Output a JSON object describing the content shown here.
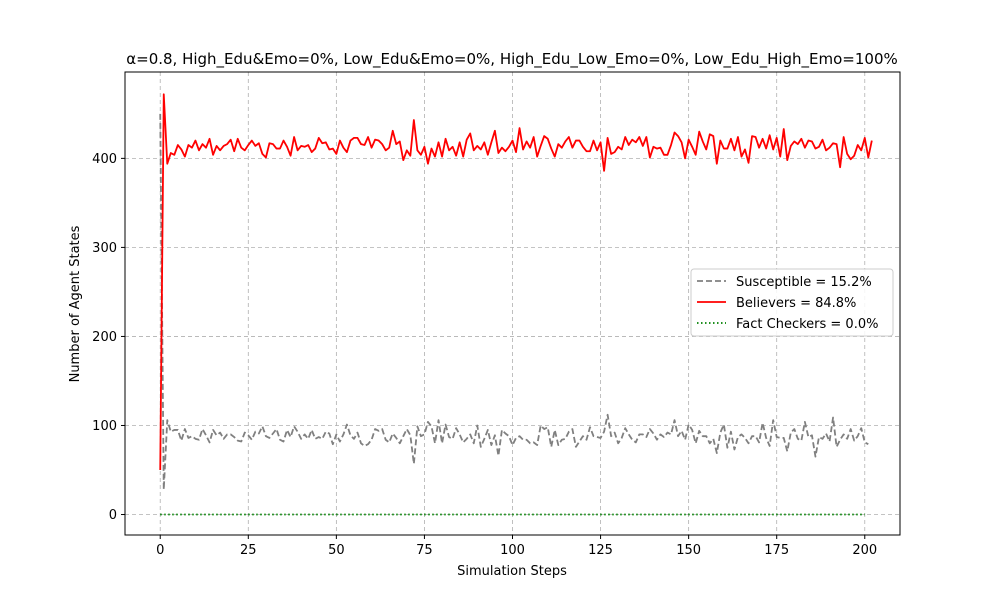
{
  "chart_data": {
    "type": "line",
    "title": "α=0.8, High_Edu&Emo=0%, Low_Edu&Emo=0%, High_Edu_Low_Emo=0%, Low_Edu_High_Emo=100%",
    "xlabel": "Simulation Steps",
    "ylabel": "Number of Agent States",
    "xlim": [
      -10,
      210
    ],
    "ylim": [
      -23,
      497
    ],
    "xticks": [
      0,
      25,
      50,
      75,
      100,
      125,
      150,
      175,
      200
    ],
    "yticks": [
      0,
      100,
      200,
      300,
      400
    ],
    "grid": true,
    "legend_position": "center-right",
    "series": [
      {
        "name": "Susceptible = 15.2%",
        "color": "#808080",
        "style": "dashed",
        "values": [
          450,
          28,
          106,
          93,
          95,
          95,
          83,
          96,
          86,
          88,
          85,
          84,
          96,
          89,
          81,
          95,
          89,
          92,
          85,
          90,
          90,
          87,
          83,
          82,
          92,
          89,
          84,
          93,
          91,
          99,
          88,
          86,
          91,
          96,
          84,
          82,
          95,
          87,
          99,
          93,
          85,
          90,
          85,
          95,
          85,
          87,
          85,
          93,
          91,
          79,
          90,
          82,
          90,
          101,
          89,
          85,
          92,
          80,
          77,
          79,
          84,
          96,
          94,
          96,
          84,
          81,
          91,
          86,
          80,
          88,
          96,
          89,
          57,
          99,
          88,
          90,
          104,
          99,
          80,
          106,
          80,
          101,
          87,
          85,
          97,
          90,
          81,
          85,
          90,
          80,
          100,
          76,
          85,
          95,
          78,
          89,
          66,
          95,
          91,
          88,
          78,
          86,
          88,
          84,
          84,
          80,
          81,
          78,
          100,
          96,
          98,
          76,
          95,
          78,
          84,
          85,
          93,
          96,
          76,
          82,
          88,
          84,
          98,
          88,
          87,
          86,
          93,
          112,
          88,
          92,
          80,
          86,
          97,
          90,
          84,
          81,
          90,
          90,
          87,
          96,
          91,
          84,
          90,
          87,
          92,
          90,
          106,
          88,
          94,
          84,
          101,
          95,
          80,
          94,
          88,
          88,
          80,
          85,
          69,
          92,
          101,
          75,
          93,
          73,
          87,
          90,
          86,
          80,
          88,
          88,
          81,
          103,
          86,
          77,
          106,
          87,
          86,
          86,
          71,
          92,
          96,
          85,
          83,
          104,
          87,
          89,
          65,
          87,
          85,
          91,
          82,
          109,
          76,
          84,
          90,
          85,
          96,
          83,
          88,
          97,
          81,
          79
        ],
        "x_start": 0
      },
      {
        "name": "Believers = 84.8%",
        "color": "#ff0000",
        "style": "solid",
        "values": [
          50,
          472,
          394,
          406,
          404,
          415,
          410,
          402,
          415,
          412,
          420,
          409,
          416,
          412,
          422,
          404,
          414,
          409,
          414,
          416,
          421,
          408,
          422,
          412,
          409,
          415,
          420,
          414,
          417,
          405,
          401,
          417,
          416,
          411,
          411,
          420,
          413,
          403,
          424,
          409,
          414,
          413,
          415,
          407,
          411,
          423,
          417,
          418,
          410,
          411,
          405,
          420,
          412,
          407,
          420,
          423,
          423,
          416,
          415,
          424,
          412,
          421,
          420,
          416,
          409,
          412,
          431,
          416,
          419,
          398,
          409,
          403,
          443,
          409,
          404,
          413,
          394,
          411,
          402,
          418,
          402,
          422,
          409,
          413,
          403,
          418,
          402,
          421,
          428,
          409,
          414,
          410,
          418,
          404,
          418,
          431,
          406,
          412,
          408,
          413,
          420,
          407,
          434,
          410,
          419,
          412,
          424,
          402,
          414,
          425,
          422,
          411,
          402,
          416,
          412,
          419,
          424,
          412,
          420,
          420,
          413,
          408,
          408,
          420,
          409,
          418,
          386,
          423,
          405,
          407,
          413,
          410,
          424,
          415,
          421,
          418,
          424,
          414,
          424,
          401,
          413,
          411,
          412,
          404,
          404,
          415,
          429,
          425,
          418,
          400,
          421,
          413,
          404,
          430,
          419,
          410,
          427,
          425,
          394,
          420,
          411,
          411,
          422,
          409,
          424,
          402,
          410,
          395,
          425,
          424,
          412,
          422,
          411,
          426,
          410,
          423,
          402,
          433,
          398,
          414,
          419,
          416,
          422,
          412,
          420,
          419,
          411,
          413,
          421,
          409,
          412,
          417,
          416,
          390,
          424,
          405,
          399,
          403,
          415,
          409,
          423,
          401,
          420
        ],
        "x_start": 0
      },
      {
        "name": "Fact Checkers = 0.0%",
        "color": "#008000",
        "style": "dotted",
        "values": [
          0,
          0
        ],
        "x": [
          0,
          200
        ]
      }
    ]
  }
}
